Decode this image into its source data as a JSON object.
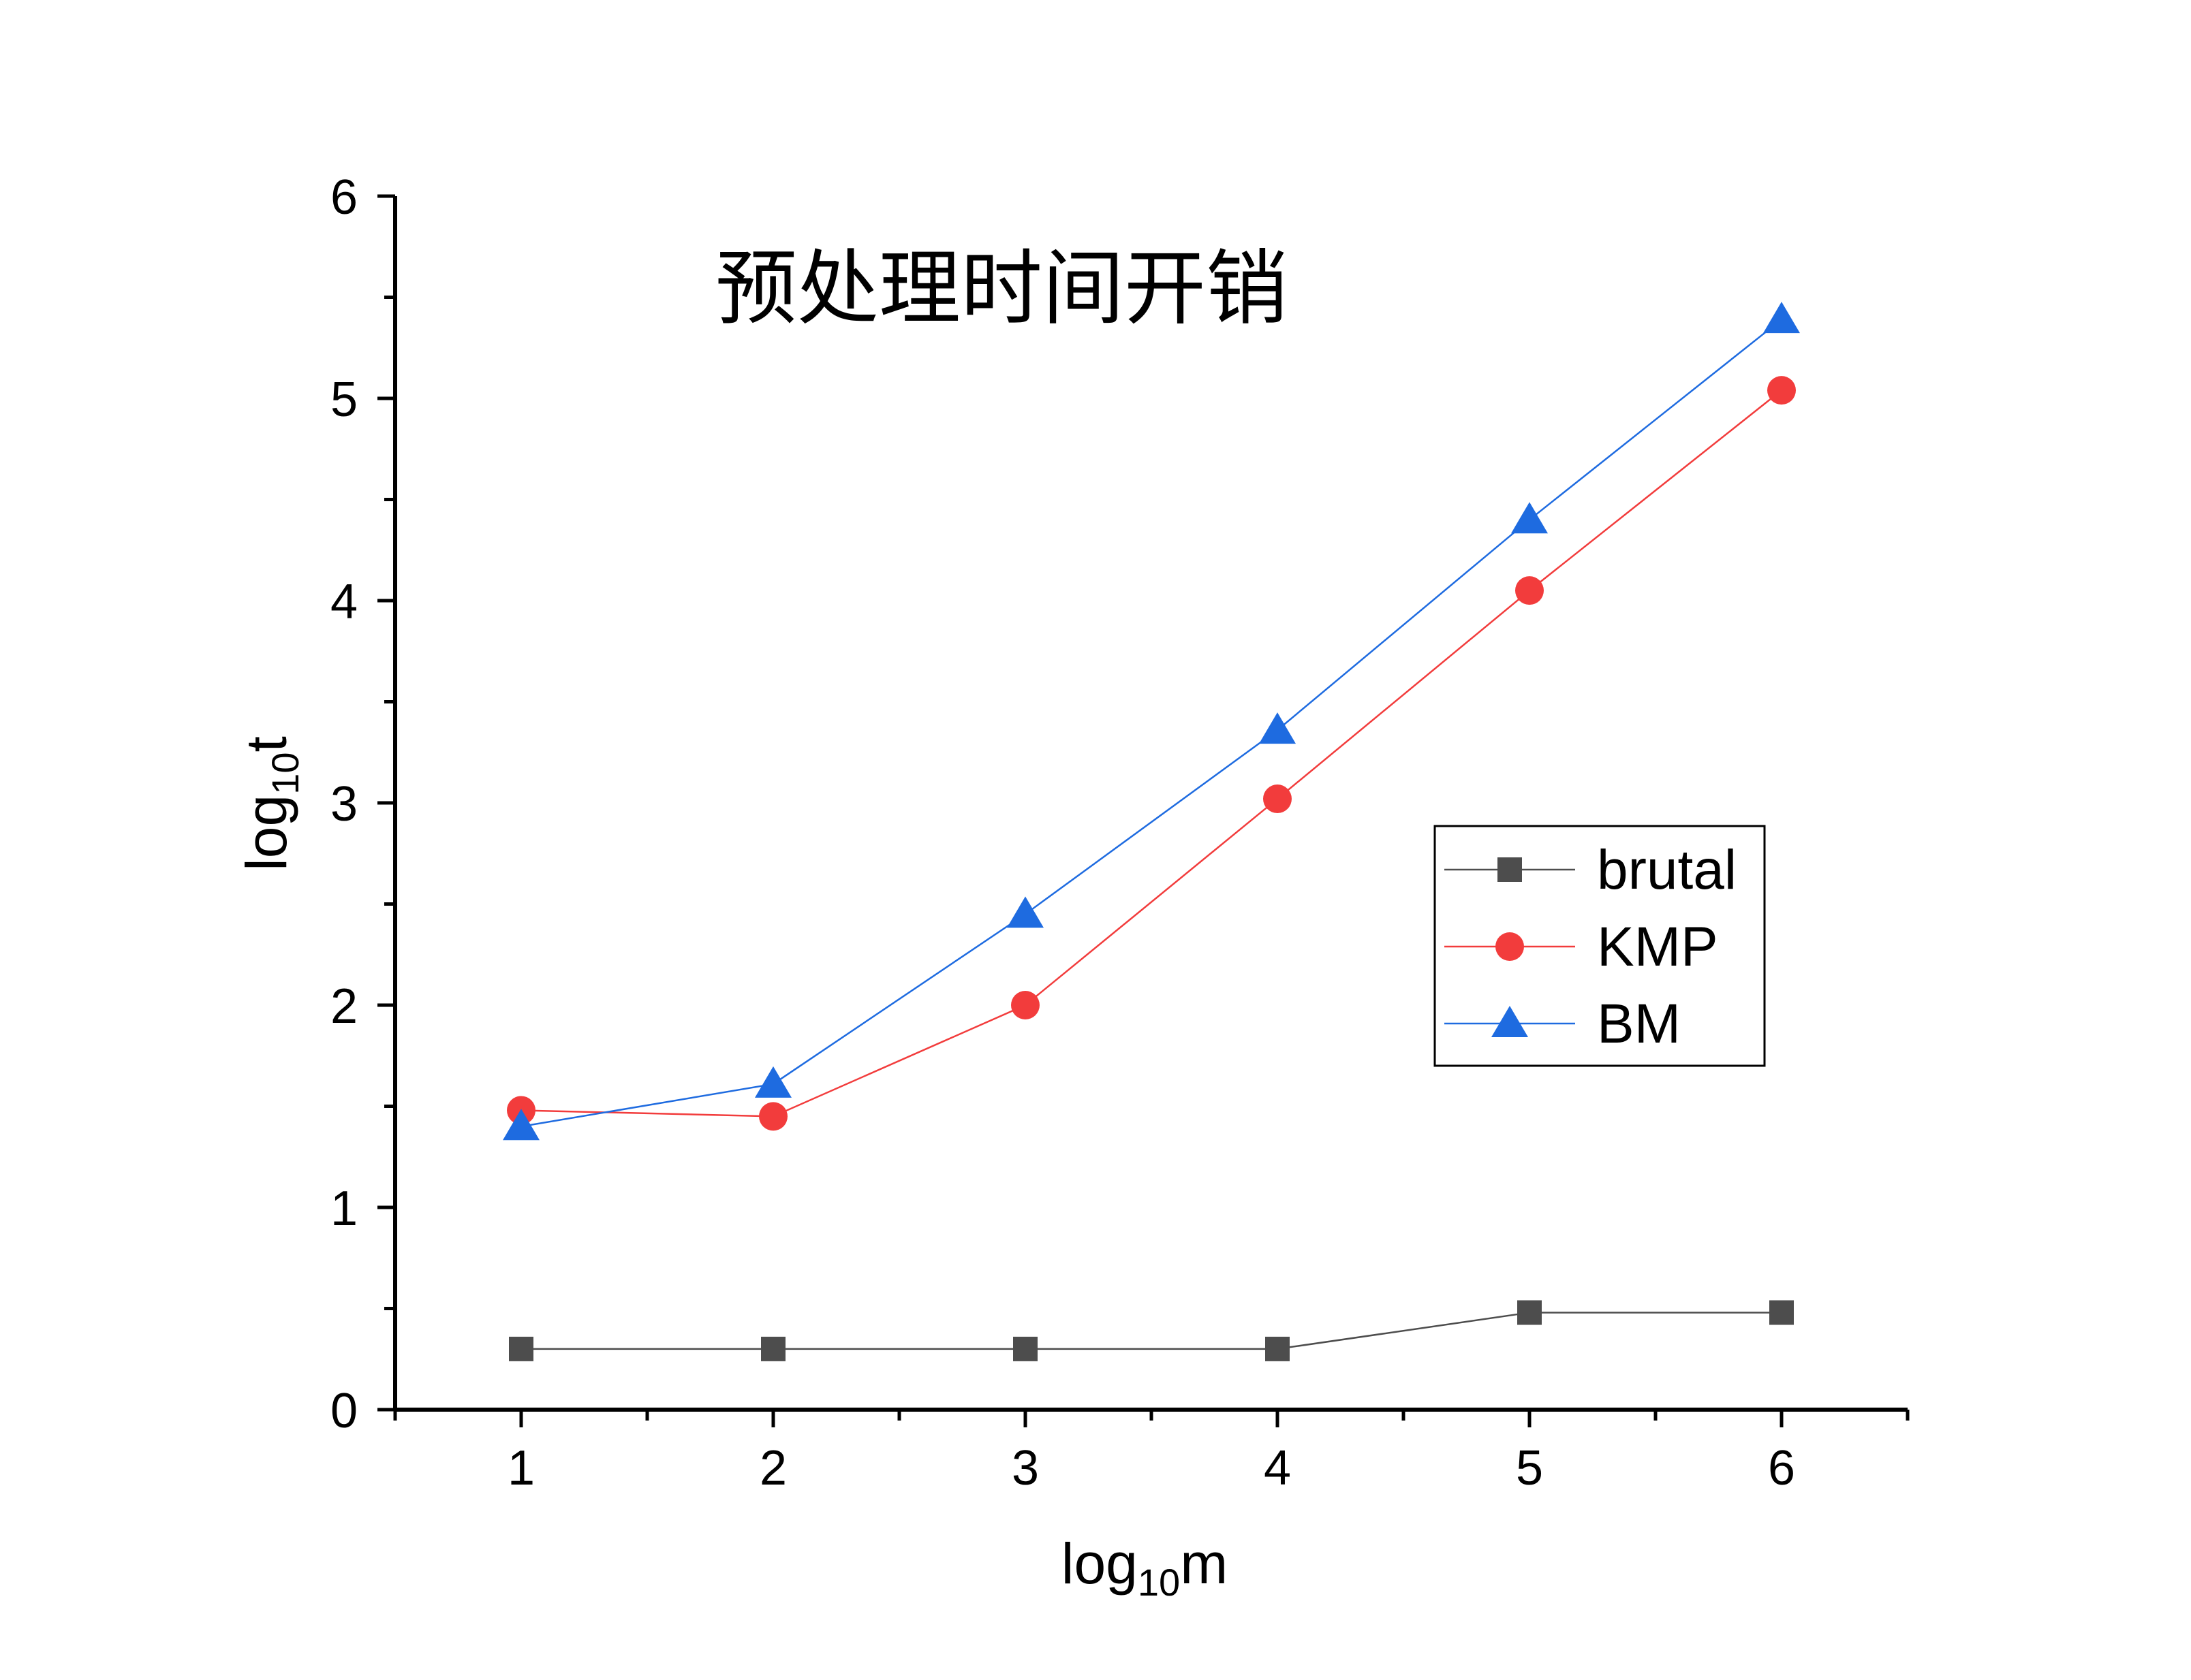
{
  "chart_data": {
    "type": "line",
    "title": "预处理时间开销",
    "xlabel_main": "log",
    "xlabel_sub": "10",
    "xlabel_tail": "m",
    "ylabel_main": "log",
    "ylabel_sub": "10",
    "ylabel_tail": "t",
    "x": [
      1,
      2,
      3,
      4,
      5,
      6
    ],
    "xlim": [
      0.5,
      6.5
    ],
    "ylim": [
      0,
      6
    ],
    "x_ticks": [
      "1",
      "2",
      "3",
      "4",
      "5",
      "6"
    ],
    "y_ticks": [
      "0",
      "1",
      "2",
      "3",
      "4",
      "5",
      "6"
    ],
    "legend_position": "center-right",
    "series": [
      {
        "name": "brutal",
        "color": "#4d4d4d",
        "marker": "square",
        "values": [
          0.3,
          0.3,
          0.3,
          0.3,
          0.48,
          0.48
        ]
      },
      {
        "name": "KMP",
        "color": "#f23c3c",
        "marker": "circle",
        "values": [
          1.48,
          1.45,
          2.0,
          3.02,
          4.05,
          5.04
        ]
      },
      {
        "name": "BM",
        "color": "#1e6be0",
        "marker": "triangle",
        "values": [
          1.4,
          1.61,
          2.45,
          3.36,
          4.4,
          5.39
        ]
      }
    ]
  }
}
